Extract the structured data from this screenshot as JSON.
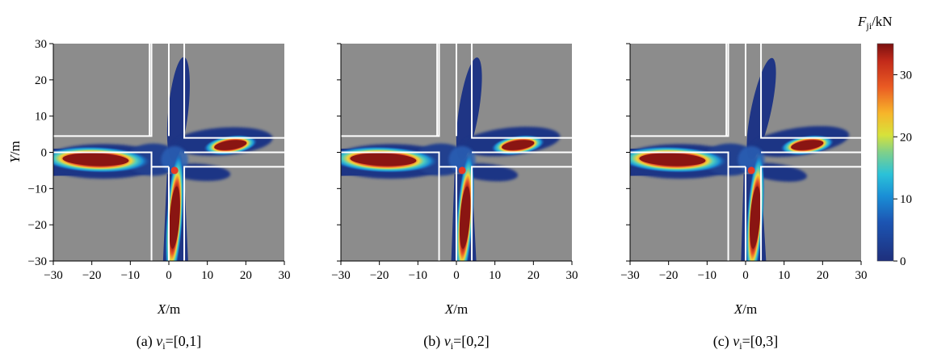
{
  "chart_data": [
    {
      "type": "heatmap",
      "panel": "(a)",
      "caption_prefix": "(a)",
      "caption_var": "v",
      "caption_sub": "i",
      "caption_value": "=[0,1]",
      "xlabel_var": "X",
      "xlabel_unit": "/m",
      "ylabel_var": "Y",
      "ylabel_unit": "/m",
      "xlim": [
        -30,
        30
      ],
      "ylim": [
        -30,
        30
      ],
      "xticks": [
        "−30",
        "−20",
        "−10",
        "0",
        "10",
        "20",
        "30"
      ],
      "yticks": [
        "30",
        "20",
        "10",
        "0",
        "−10",
        "−20",
        "−30"
      ],
      "vehicle_position": [
        1.5,
        -5
      ],
      "peaks": [
        {
          "x": -19,
          "y": -2,
          "value": 35
        },
        {
          "x": 16,
          "y": 2,
          "value": 35
        },
        {
          "x": 1.5,
          "y": -18,
          "value": 35
        }
      ]
    },
    {
      "type": "heatmap",
      "panel": "(b)",
      "caption_prefix": "(b)",
      "caption_var": "v",
      "caption_sub": "i",
      "caption_value": "=[0,2]",
      "xlabel_var": "X",
      "xlabel_unit": "/m",
      "xlim": [
        -30,
        30
      ],
      "ylim": [
        -30,
        30
      ],
      "xticks": [
        "−30",
        "−20",
        "−10",
        "0",
        "10",
        "20",
        "30"
      ],
      "vehicle_position": [
        1.5,
        -5
      ],
      "peaks": [
        {
          "x": -19,
          "y": -2,
          "value": 35
        },
        {
          "x": 16,
          "y": 2,
          "value": 35
        },
        {
          "x": 2,
          "y": -18,
          "value": 35
        }
      ]
    },
    {
      "type": "heatmap",
      "panel": "(c)",
      "caption_prefix": "(c)",
      "caption_var": "v",
      "caption_sub": "i",
      "caption_value": "=[0,3]",
      "xlabel_var": "X",
      "xlabel_unit": "/m",
      "xlim": [
        -30,
        30
      ],
      "ylim": [
        -30,
        30
      ],
      "xticks": [
        "−30",
        "−20",
        "−10",
        "0",
        "10",
        "20",
        "30"
      ],
      "vehicle_position": [
        1.5,
        -5
      ],
      "peaks": [
        {
          "x": -19,
          "y": -2,
          "value": 35
        },
        {
          "x": 16,
          "y": 2,
          "value": 35
        },
        {
          "x": 2,
          "y": -18,
          "value": 35
        }
      ]
    }
  ],
  "colorbar": {
    "title_var": "F",
    "title_sub": "ji",
    "title_unit": "/kN",
    "range": [
      0,
      35
    ],
    "ticks": [
      "30",
      "20",
      "10",
      "0"
    ],
    "tick_values": [
      30,
      20,
      10,
      0
    ]
  },
  "colors": {
    "background": "#8c8c8c",
    "low": "#1f2f7f",
    "mid": "#2bb6d6",
    "high": "#7a1010",
    "vehicle": "#e83a25",
    "road_lines": "#ffffff"
  }
}
